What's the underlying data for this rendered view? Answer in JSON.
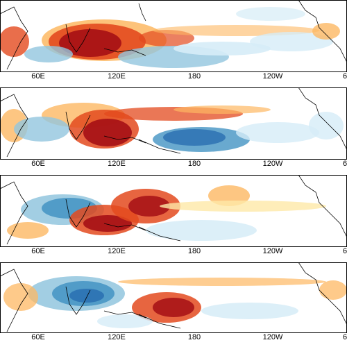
{
  "figure": {
    "panels": [
      {
        "id": "panel-1"
      },
      {
        "id": "panel-2"
      },
      {
        "id": "panel-3"
      },
      {
        "id": "panel-4"
      }
    ],
    "x_ticks": [
      "60E",
      "120E",
      "180",
      "120W",
      "6"
    ],
    "colors": {
      "positive_strong": "#a50f15",
      "positive_mid": "#e34a1e",
      "positive_light": "#fdb863",
      "positive_faint": "#fee8a8",
      "negative_faint": "#d6ecf7",
      "negative_light": "#92c5de",
      "negative_mid": "#4393c3",
      "negative_strong": "#2166ac",
      "coastline": "#000000",
      "frame": "#000000",
      "background": "#ffffff"
    }
  }
}
